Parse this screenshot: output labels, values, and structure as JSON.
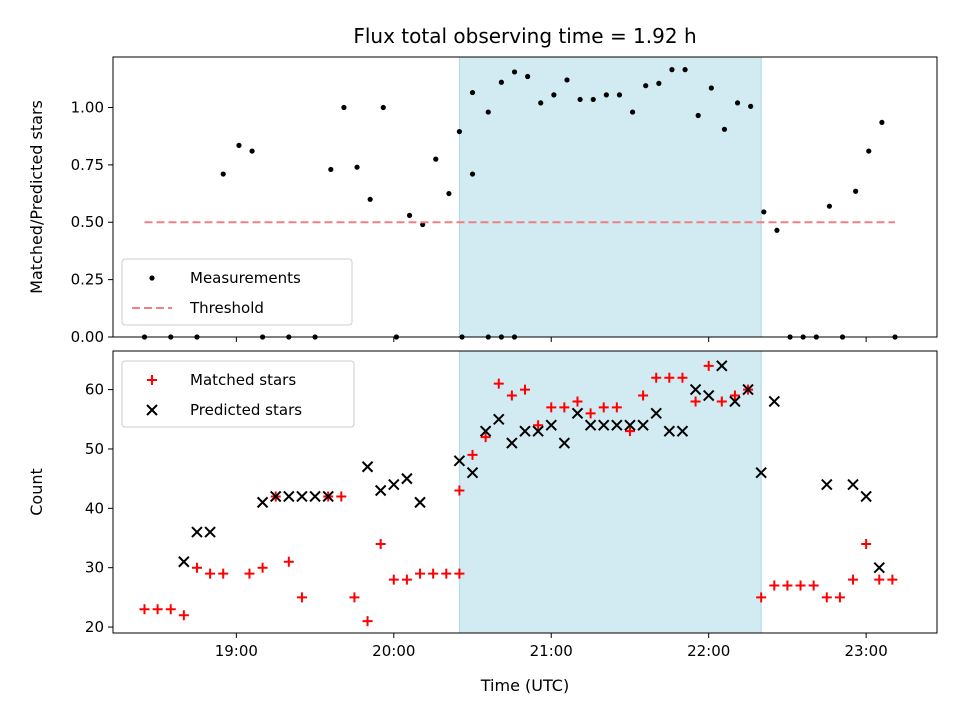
{
  "figure": {
    "title": "Flux total observing time = 1.92 h"
  },
  "colors": {
    "measurement": "#000000",
    "threshold": "#f08080",
    "matched": "#ff0000",
    "predicted": "#000000",
    "highlight": "#add8e6"
  },
  "chart_data": [
    {
      "type": "scatter",
      "panel": "top",
      "title": "Flux total observing time = 1.92 h",
      "ylabel": "Matched/Predicted stars",
      "xlabel": "",
      "xlim": [
        "18:13",
        "23:27"
      ],
      "ylim": [
        0,
        1.22
      ],
      "yticks": [
        "0.00",
        "0.25",
        "0.50",
        "0.75",
        "1.00"
      ],
      "highlight_span": [
        "20:25",
        "22:20"
      ],
      "legend": {
        "placement": "lower-left",
        "entries": [
          "Measurements",
          "Threshold"
        ]
      },
      "series": [
        {
          "name": "Measurements",
          "marker": "dot",
          "points": [
            [
              "18:25",
              0.0
            ],
            [
              "18:35",
              0.0
            ],
            [
              "18:45",
              0.0
            ],
            [
              "18:55",
              0.71
            ],
            [
              "19:01",
              0.835
            ],
            [
              "19:06",
              0.81
            ],
            [
              "19:10",
              0.0
            ],
            [
              "19:20",
              0.0
            ],
            [
              "19:30",
              0.0
            ],
            [
              "19:36",
              0.73
            ],
            [
              "19:41",
              1.0
            ],
            [
              "19:46",
              0.74
            ],
            [
              "19:51",
              0.6
            ],
            [
              "19:56",
              1.0
            ],
            [
              "20:01",
              0.0
            ],
            [
              "20:06",
              0.53
            ],
            [
              "20:11",
              0.49
            ],
            [
              "20:16",
              0.775
            ],
            [
              "20:21",
              0.625
            ],
            [
              "20:26",
              0.0
            ],
            [
              "20:30",
              0.71
            ],
            [
              "20:36",
              0.0
            ],
            [
              "20:41",
              0.0
            ],
            [
              "20:46",
              0.0
            ],
            [
              "20:25",
              0.895
            ],
            [
              "20:30",
              1.065
            ],
            [
              "20:36",
              0.98
            ],
            [
              "20:41",
              1.11
            ],
            [
              "20:46",
              1.155
            ],
            [
              "20:51",
              1.135
            ],
            [
              "20:56",
              1.02
            ],
            [
              "21:01",
              1.055
            ],
            [
              "21:06",
              1.12
            ],
            [
              "21:11",
              1.035
            ],
            [
              "21:16",
              1.035
            ],
            [
              "21:21",
              1.055
            ],
            [
              "21:26",
              1.055
            ],
            [
              "21:31",
              0.98
            ],
            [
              "21:36",
              1.095
            ],
            [
              "21:41",
              1.105
            ],
            [
              "21:46",
              1.165
            ],
            [
              "21:51",
              1.165
            ],
            [
              "21:56",
              0.965
            ],
            [
              "22:01",
              1.085
            ],
            [
              "22:06",
              0.905
            ],
            [
              "22:11",
              1.02
            ],
            [
              "22:16",
              1.005
            ],
            [
              "22:21",
              0.545
            ],
            [
              "22:26",
              0.465
            ],
            [
              "22:31",
              0.0
            ],
            [
              "22:36",
              0.0
            ],
            [
              "22:41",
              0.0
            ],
            [
              "22:46",
              0.57
            ],
            [
              "22:51",
              0.0
            ],
            [
              "22:56",
              0.635
            ],
            [
              "23:01",
              0.81
            ],
            [
              "23:06",
              0.935
            ],
            [
              "23:11",
              0.0
            ]
          ]
        },
        {
          "name": "Threshold",
          "marker": "dashed-line",
          "points": [
            [
              "18:25",
              0.5
            ],
            [
              "23:11",
              0.5
            ]
          ]
        }
      ]
    },
    {
      "type": "scatter",
      "panel": "bottom",
      "title": "",
      "xlabel": "Time (UTC)",
      "ylabel": "Count",
      "xlim": [
        "18:13",
        "23:27"
      ],
      "ylim": [
        19,
        66.5
      ],
      "xticks": [
        "19:00",
        "20:00",
        "21:00",
        "22:00",
        "23:00"
      ],
      "yticks": [
        "20",
        "30",
        "40",
        "50",
        "60"
      ],
      "highlight_span": [
        "20:25",
        "22:20"
      ],
      "legend": {
        "placement": "top-left",
        "entries": [
          "Matched stars",
          "Predicted stars"
        ]
      },
      "series": [
        {
          "name": "Matched stars",
          "marker": "plus",
          "points": [
            [
              "18:25",
              23
            ],
            [
              "18:30",
              23
            ],
            [
              "18:35",
              23
            ],
            [
              "18:40",
              22
            ],
            [
              "18:45",
              30
            ],
            [
              "18:50",
              29
            ],
            [
              "18:55",
              29
            ],
            [
              "19:05",
              29
            ],
            [
              "19:10",
              30
            ],
            [
              "19:15",
              42
            ],
            [
              "19:20",
              31
            ],
            [
              "19:25",
              25
            ],
            [
              "19:35",
              42
            ],
            [
              "19:40",
              42
            ],
            [
              "19:45",
              25
            ],
            [
              "19:50",
              21
            ],
            [
              "19:55",
              34
            ],
            [
              "20:00",
              28
            ],
            [
              "20:05",
              28
            ],
            [
              "20:10",
              29
            ],
            [
              "20:15",
              29
            ],
            [
              "20:20",
              29
            ],
            [
              "20:25",
              29
            ],
            [
              "20:25",
              43
            ],
            [
              "20:30",
              49
            ],
            [
              "20:35",
              52
            ],
            [
              "20:40",
              61
            ],
            [
              "20:45",
              59
            ],
            [
              "20:50",
              60
            ],
            [
              "20:55",
              54
            ],
            [
              "21:00",
              57
            ],
            [
              "21:05",
              57
            ],
            [
              "21:10",
              58
            ],
            [
              "21:15",
              56
            ],
            [
              "21:20",
              57
            ],
            [
              "21:25",
              57
            ],
            [
              "21:30",
              53
            ],
            [
              "21:35",
              59
            ],
            [
              "21:40",
              62
            ],
            [
              "21:45",
              62
            ],
            [
              "21:50",
              62
            ],
            [
              "21:55",
              58
            ],
            [
              "22:00",
              64
            ],
            [
              "22:05",
              58
            ],
            [
              "22:10",
              59
            ],
            [
              "22:15",
              60
            ],
            [
              "22:20",
              25
            ],
            [
              "22:25",
              27
            ],
            [
              "22:30",
              27
            ],
            [
              "22:35",
              27
            ],
            [
              "22:40",
              27
            ],
            [
              "22:45",
              25
            ],
            [
              "22:50",
              25
            ],
            [
              "22:55",
              28
            ],
            [
              "23:00",
              34
            ],
            [
              "23:05",
              28
            ],
            [
              "23:10",
              28
            ]
          ]
        },
        {
          "name": "Predicted stars",
          "marker": "x",
          "points": [
            [
              "18:40",
              31
            ],
            [
              "18:45",
              36
            ],
            [
              "18:50",
              36
            ],
            [
              "19:10",
              41
            ],
            [
              "19:15",
              42
            ],
            [
              "19:20",
              42
            ],
            [
              "19:25",
              42
            ],
            [
              "19:30",
              42
            ],
            [
              "19:35",
              42
            ],
            [
              "19:50",
              47
            ],
            [
              "19:55",
              43
            ],
            [
              "20:00",
              44
            ],
            [
              "20:05",
              45
            ],
            [
              "20:10",
              41
            ],
            [
              "20:25",
              48
            ],
            [
              "20:30",
              46
            ],
            [
              "20:35",
              53
            ],
            [
              "20:40",
              55
            ],
            [
              "20:45",
              51
            ],
            [
              "20:50",
              53
            ],
            [
              "20:55",
              53
            ],
            [
              "21:00",
              54
            ],
            [
              "21:05",
              51
            ],
            [
              "21:10",
              56
            ],
            [
              "21:15",
              54
            ],
            [
              "21:20",
              54
            ],
            [
              "21:25",
              54
            ],
            [
              "21:30",
              54
            ],
            [
              "21:35",
              54
            ],
            [
              "21:40",
              56
            ],
            [
              "21:45",
              53
            ],
            [
              "21:50",
              53
            ],
            [
              "21:55",
              60
            ],
            [
              "22:00",
              59
            ],
            [
              "22:05",
              64
            ],
            [
              "22:10",
              58
            ],
            [
              "22:15",
              60
            ],
            [
              "22:20",
              46
            ],
            [
              "22:25",
              58
            ],
            [
              "22:45",
              44
            ],
            [
              "22:55",
              44
            ],
            [
              "23:00",
              42
            ],
            [
              "23:05",
              30
            ]
          ]
        }
      ]
    }
  ]
}
